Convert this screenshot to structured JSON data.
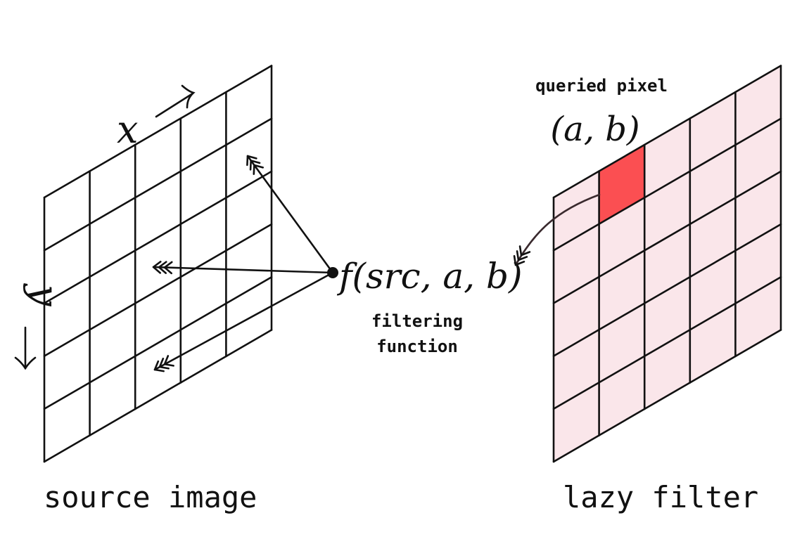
{
  "diagram": {
    "source_image": {
      "label": "source image",
      "axis_x": "x",
      "axis_y": "y",
      "rows": 5,
      "cols": 5
    },
    "filtering_function": {
      "expression": "f(src, a, b)",
      "label_line1": "filtering",
      "label_line2": "function"
    },
    "lazy_filter": {
      "label": "lazy filter",
      "queried_label": "queried pixel",
      "queried_coords": "(a, b)",
      "rows": 5,
      "cols": 5,
      "queried_cell": {
        "row": 0,
        "col": 1
      }
    },
    "colors": {
      "grid_fill": "#fae6ea",
      "queried_fill": "#fb4f52",
      "ink": "#111111",
      "curve": "#3a2a2e"
    }
  }
}
